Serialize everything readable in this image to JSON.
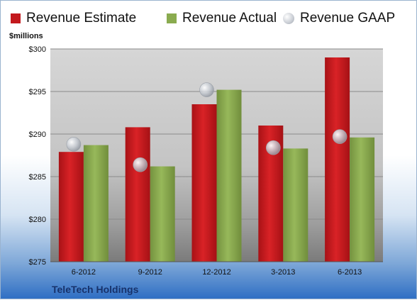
{
  "company": "TeleTech Holdings",
  "unit_label": "$millions",
  "colors": {
    "estimate": "#c3191d",
    "actual": "#8aab4f",
    "gaap": "#c7ccd3"
  },
  "legend": [
    {
      "key": "estimate",
      "label": "Revenue Estimate",
      "marker": "square"
    },
    {
      "key": "actual",
      "label": "Revenue Actual",
      "marker": "square"
    },
    {
      "key": "gaap",
      "label": "Revenue GAAP",
      "marker": "circle"
    }
  ],
  "chart_data": {
    "type": "bar",
    "title": "",
    "xlabel": "",
    "ylabel": "$millions",
    "categories": [
      "6-2012",
      "9-2012",
      "12-2012",
      "3-2013",
      "6-2013"
    ],
    "series": [
      {
        "name": "Revenue Estimate",
        "kind": "bar",
        "values": [
          287.9,
          290.8,
          293.5,
          291.0,
          299.0
        ]
      },
      {
        "name": "Revenue Actual",
        "kind": "bar",
        "values": [
          288.7,
          286.2,
          295.2,
          288.3,
          289.6
        ]
      },
      {
        "name": "Revenue GAAP",
        "kind": "marker",
        "values": [
          288.8,
          286.4,
          295.2,
          288.4,
          289.7
        ]
      }
    ],
    "ylim": [
      275,
      300
    ],
    "yticks": [
      275,
      280,
      285,
      290,
      295,
      300
    ],
    "ytick_labels": [
      "$275",
      "$280",
      "$285",
      "$290",
      "$295",
      "$300"
    ],
    "grid": true,
    "legend_position": "top"
  }
}
